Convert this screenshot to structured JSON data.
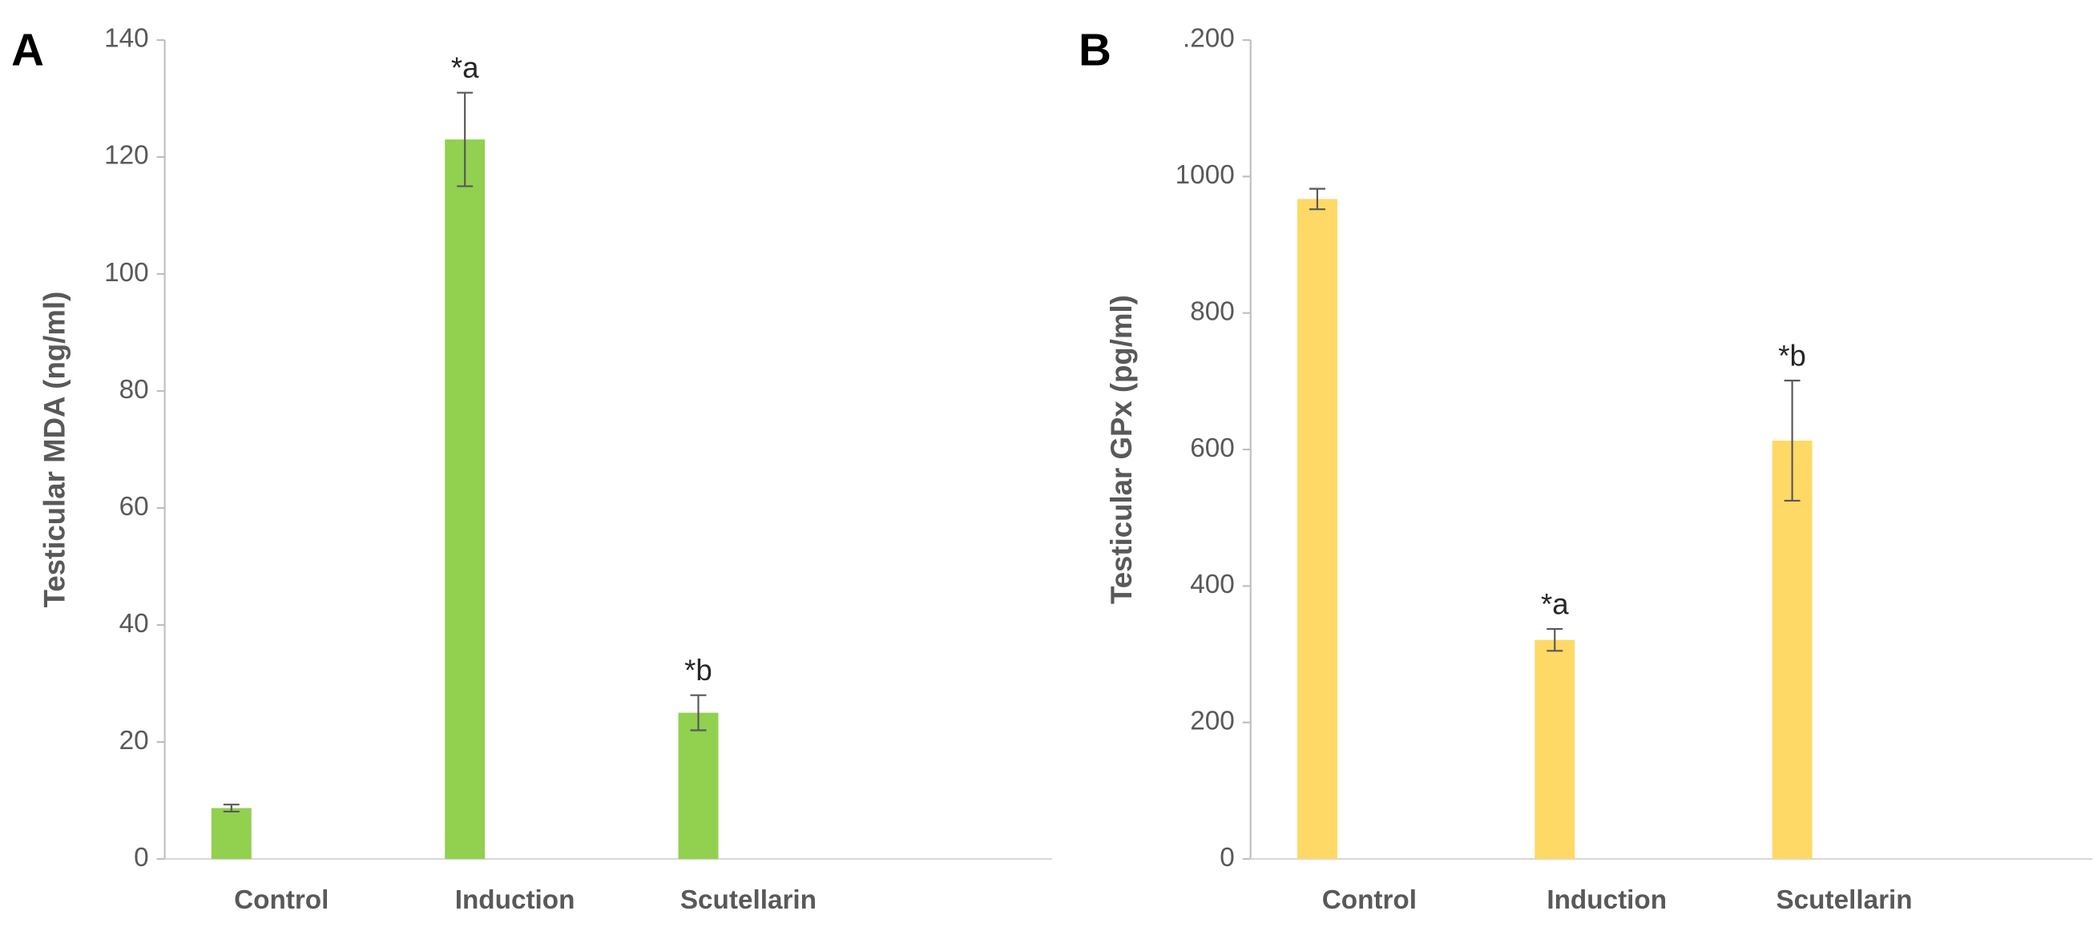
{
  "chart_data": [
    {
      "type": "bar",
      "panel_label": "A",
      "y_label": "Testicular MDA (ng/ml)",
      "categories": [
        "Control",
        "Induction",
        "Scutellarin"
      ],
      "values": [
        8.7,
        123,
        25
      ],
      "errors": [
        0.6,
        8,
        3
      ],
      "annotations": [
        null,
        "*a",
        "*b"
      ],
      "color": "#92d050",
      "ylim": [
        0,
        140
      ],
      "yticks": [
        0,
        20,
        40,
        60,
        80,
        100,
        120,
        140
      ]
    },
    {
      "type": "bar",
      "panel_label": "B",
      "y_label": "Testicular GPx (pg/ml)",
      "categories": [
        "Control",
        "Induction",
        "Scutellarin"
      ],
      "values": [
        967,
        321,
        613
      ],
      "errors": [
        15,
        16,
        88
      ],
      "annotations": [
        null,
        "*a",
        "*b"
      ],
      "color": "#ffd966",
      "ylim": [
        0,
        1200
      ],
      "yticks": [
        0,
        200,
        400,
        600,
        800,
        1000,
        {
          "value": 1200,
          "label": ".200"
        }
      ]
    }
  ]
}
